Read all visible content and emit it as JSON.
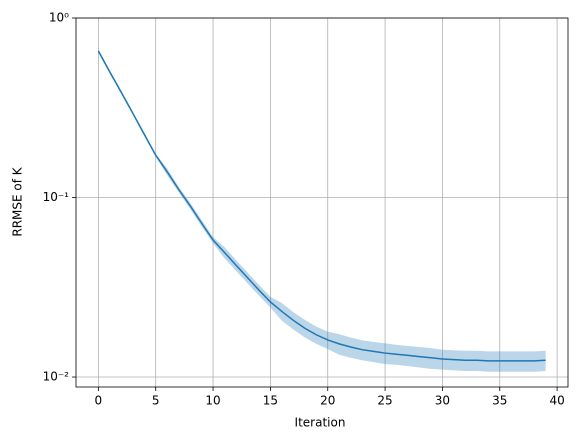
{
  "chart_data": {
    "type": "line",
    "x_label": "Iteration",
    "y_label": "RRMSE of K",
    "x": [
      0,
      1,
      2,
      3,
      4,
      5,
      6,
      7,
      8,
      9,
      10,
      11,
      12,
      13,
      14,
      15,
      16,
      17,
      18,
      19,
      20,
      21,
      22,
      23,
      24,
      25,
      26,
      27,
      28,
      29,
      30,
      31,
      32,
      33,
      34,
      35,
      36,
      37,
      38,
      39
    ],
    "series": [
      {
        "color": "#1f77b4",
        "values": [
          0.655,
          0.5,
          0.385,
          0.295,
          0.225,
          0.172,
          0.139,
          0.111,
          0.09,
          0.072,
          0.058,
          0.0494,
          0.042,
          0.0358,
          0.0305,
          0.0262,
          0.0232,
          0.0207,
          0.0187,
          0.0172,
          0.0161,
          0.0153,
          0.0147,
          0.0142,
          0.0139,
          0.0136,
          0.0134,
          0.0132,
          0.013,
          0.0128,
          0.0126,
          0.0125,
          0.0124,
          0.0124,
          0.0123,
          0.0123,
          0.0123,
          0.0123,
          0.0123,
          0.0124
        ],
        "upper": [
          0.668,
          0.51,
          0.393,
          0.301,
          0.23,
          0.175,
          0.145,
          0.115,
          0.0936,
          0.0749,
          0.0603,
          0.0529,
          0.0449,
          0.0383,
          0.0326,
          0.028,
          0.0258,
          0.023,
          0.0208,
          0.0191,
          0.0179,
          0.0173,
          0.0166,
          0.016,
          0.0157,
          0.0154,
          0.0151,
          0.0149,
          0.0147,
          0.0145,
          0.0142,
          0.0141,
          0.014,
          0.014,
          0.0139,
          0.0139,
          0.0139,
          0.0139,
          0.0139,
          0.014
        ],
        "lower": [
          0.642,
          0.49,
          0.377,
          0.289,
          0.22,
          0.169,
          0.133,
          0.107,
          0.0864,
          0.0691,
          0.0557,
          0.0459,
          0.0391,
          0.0333,
          0.0284,
          0.0244,
          0.0206,
          0.0184,
          0.0166,
          0.0153,
          0.0143,
          0.0133,
          0.0128,
          0.0124,
          0.0121,
          0.0118,
          0.0117,
          0.0115,
          0.0113,
          0.0111,
          0.011,
          0.0109,
          0.0108,
          0.0108,
          0.0107,
          0.0107,
          0.0107,
          0.0107,
          0.0107,
          0.0108
        ]
      }
    ],
    "xlim": [
      -1.95,
      40.95
    ],
    "xticks": [
      0,
      5,
      10,
      15,
      20,
      25,
      30,
      35,
      40
    ],
    "ylim": [
      0.0088,
      1
    ],
    "yticks": [
      {
        "value": 1,
        "label": "10⁰"
      },
      {
        "value": 0.1,
        "label": "10⁻¹"
      },
      {
        "value": 0.01,
        "label": "10⁻²"
      }
    ],
    "log_y": true,
    "grid": true
  }
}
